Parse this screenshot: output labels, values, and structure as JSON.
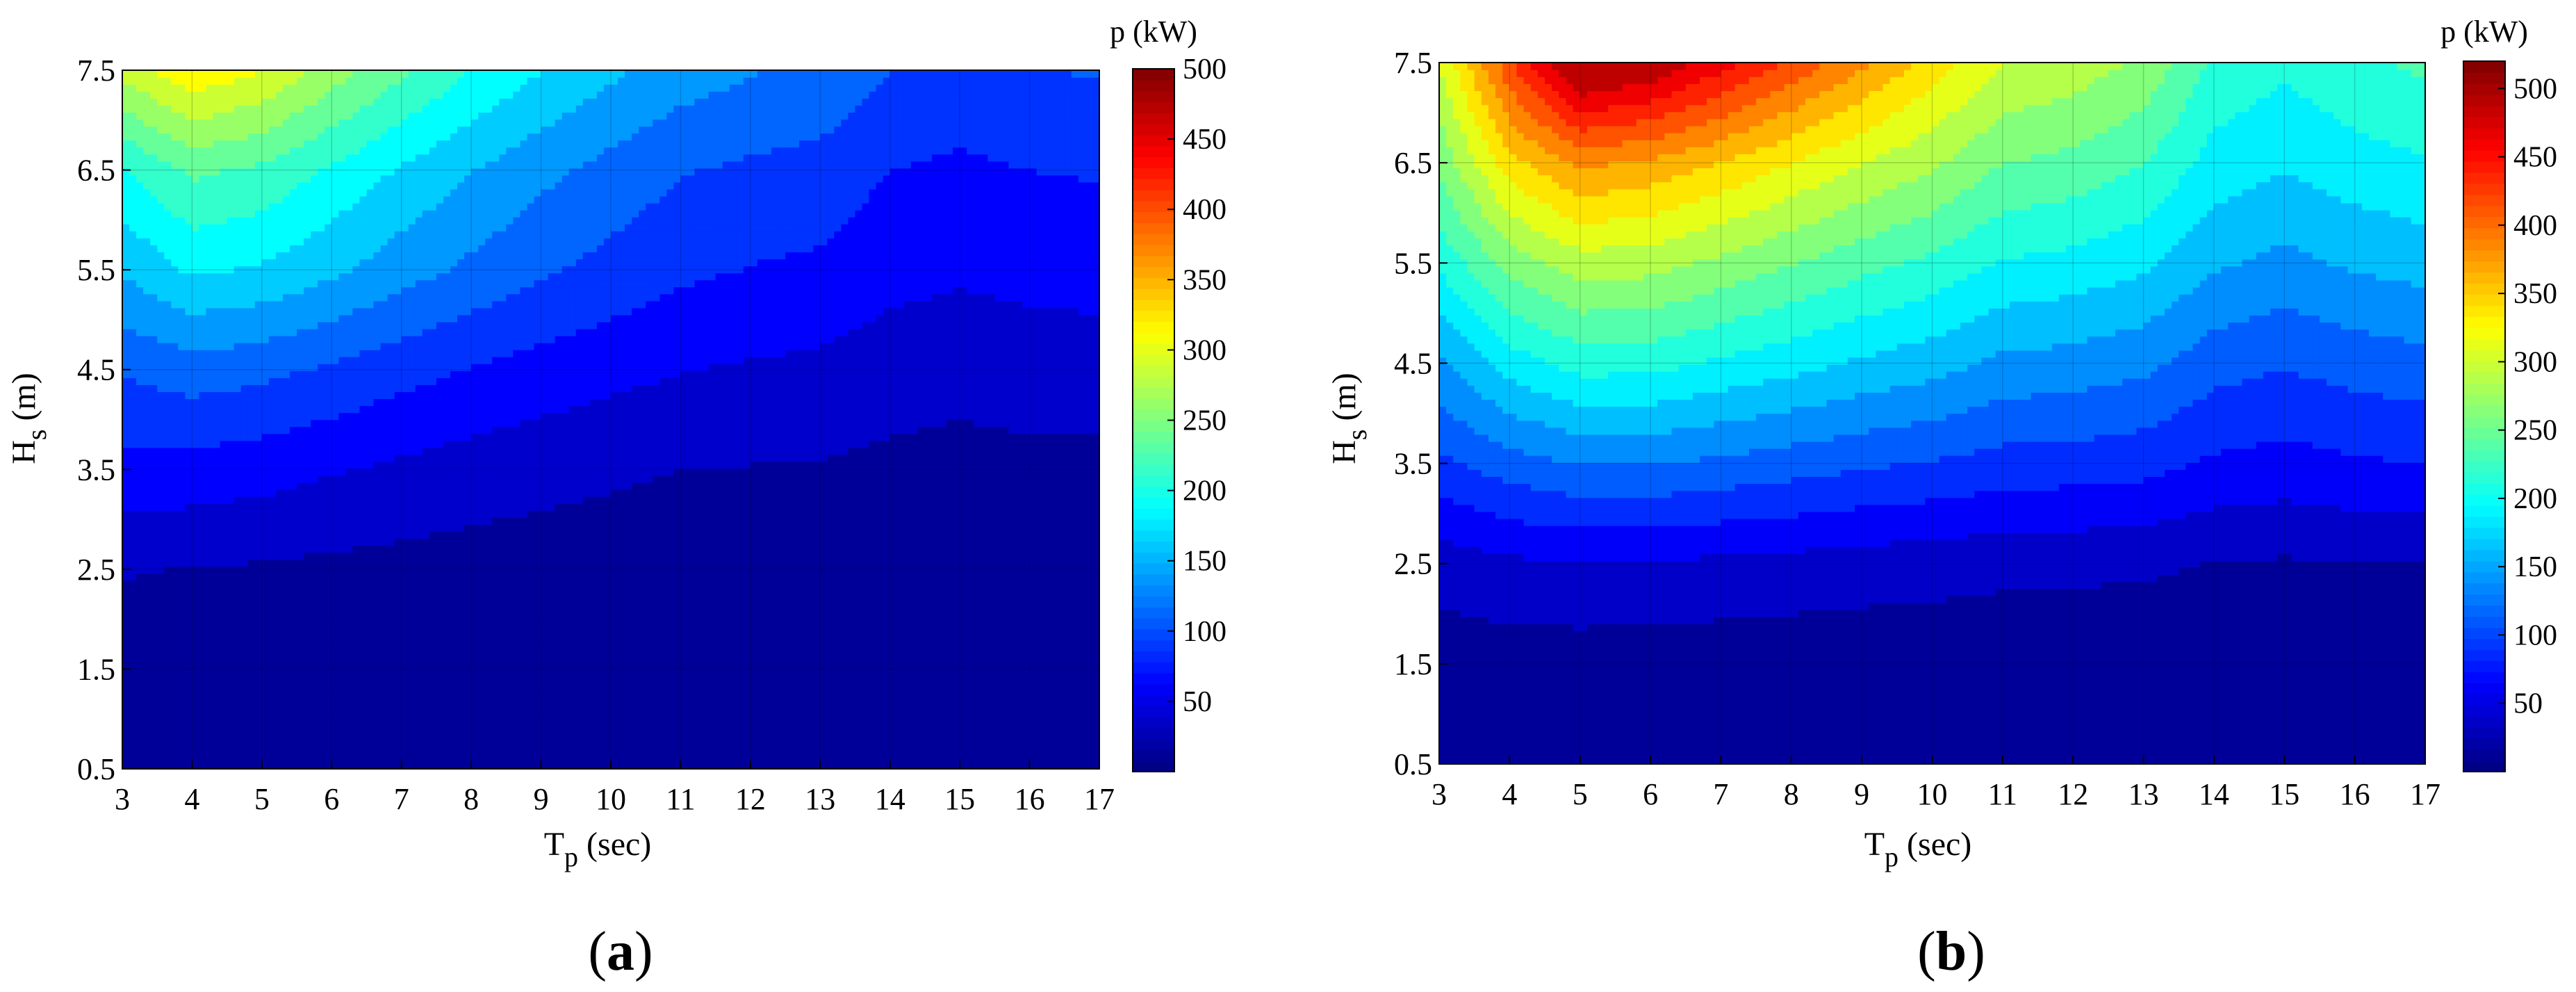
{
  "chart_data": [
    {
      "type": "heatmap",
      "subtype": "filled-contour",
      "panel_label": "a",
      "xlabel": "T",
      "xlabel_sub": "p",
      "xlabel_unit": " (sec)",
      "ylabel": "H",
      "ylabel_sub": "s",
      "ylabel_unit": " (m)",
      "colorbar_title": "p (kW)",
      "colormap": "jet",
      "xlim": [
        3,
        17
      ],
      "ylim": [
        0.5,
        7.5
      ],
      "clim": [
        0,
        500
      ],
      "x": [
        3,
        4,
        5,
        6,
        7,
        8,
        9,
        10,
        11,
        12,
        13,
        14,
        15,
        16,
        17
      ],
      "y": [
        0.5,
        1.5,
        2.5,
        3.5,
        4.5,
        5.5,
        6.5,
        7.5
      ],
      "xticks": [
        "3",
        "4",
        "5",
        "6",
        "7",
        "8",
        "9",
        "10",
        "11",
        "12",
        "13",
        "14",
        "15",
        "16",
        "17"
      ],
      "yticks": [
        "0.5",
        "1.5",
        "2.5",
        "3.5",
        "4.5",
        "5.5",
        "6.5",
        "7.5"
      ],
      "cticks": [
        "50",
        "100",
        "150",
        "200",
        "250",
        "300",
        "350",
        "400",
        "450",
        "500"
      ],
      "z": [
        [
          0.9,
          0.8,
          0.8,
          0.7,
          0.6,
          0.6,
          0.5,
          0.4,
          0.4,
          0.4,
          0.3,
          0.3,
          0.3,
          0.3,
          0.3
        ],
        [
          8,
          7,
          7,
          6,
          5,
          5,
          4,
          4,
          3,
          3,
          3,
          3,
          2,
          2,
          2
        ],
        [
          27,
          24,
          22,
          19,
          17,
          15,
          13,
          12,
          10,
          10,
          9,
          8,
          7,
          8,
          8
        ],
        [
          68,
          65,
          60,
          52,
          45,
          38,
          33,
          29,
          25,
          24,
          23,
          19,
          17,
          19,
          19
        ],
        [
          102,
          113,
          107,
          96,
          84,
          74,
          65,
          57,
          51,
          47,
          44,
          37,
          33,
          36,
          37
        ],
        [
          152,
          179,
          172,
          155,
          136,
          119,
          104,
          92,
          80,
          74,
          70,
          58,
          54,
          58,
          60
        ],
        [
          197,
          230,
          220,
          196,
          172,
          151,
          132,
          116,
          102,
          95,
          91,
          75,
          70,
          75,
          77
        ],
        [
          283,
          320,
          300,
          263,
          230,
          200,
          176,
          155,
          138,
          127,
          120,
          100,
          93,
          99,
          102
        ]
      ]
    },
    {
      "type": "heatmap",
      "subtype": "filled-contour",
      "panel_label": "b",
      "xlabel": "T",
      "xlabel_sub": "p",
      "xlabel_unit": " (sec)",
      "ylabel": "H",
      "ylabel_sub": "s",
      "ylabel_unit": " (m)",
      "colorbar_title": "p (kW)",
      "colormap": "jet",
      "xlim": [
        3,
        17
      ],
      "ylim": [
        0.5,
        7.5
      ],
      "clim": [
        0,
        520
      ],
      "x": [
        3,
        4,
        5,
        6,
        7,
        8,
        9,
        10,
        11,
        12,
        13,
        14,
        15,
        16,
        17
      ],
      "y": [
        0.5,
        1.5,
        2.5,
        3.5,
        4.5,
        5.5,
        6.5,
        7.5
      ],
      "xticks": [
        "3",
        "4",
        "5",
        "6",
        "7",
        "8",
        "9",
        "10",
        "11",
        "12",
        "13",
        "14",
        "15",
        "16",
        "17"
      ],
      "yticks": [
        "0.5",
        "1.5",
        "2.5",
        "3.5",
        "4.5",
        "5.5",
        "6.5",
        "7.5"
      ],
      "cticks": [
        "50",
        "100",
        "150",
        "200",
        "250",
        "300",
        "350",
        "400",
        "450",
        "500"
      ],
      "z": [
        [
          1.1,
          1.0,
          0.9,
          0.8,
          0.7,
          0.6,
          0.6,
          0.5,
          0.4,
          0.4,
          0.4,
          0.3,
          0.3,
          0.3,
          0.3
        ],
        [
          11,
          12,
          12,
          11,
          10,
          9,
          8,
          8,
          7,
          6,
          6,
          5,
          4,
          5,
          5
        ],
        [
          36,
          45,
          48,
          47,
          44,
          41,
          38,
          35,
          32,
          31,
          29,
          24,
          22,
          24,
          25
        ],
        [
          94,
          113,
          126,
          126,
          119,
          112,
          104,
          98,
          90,
          88,
          84,
          71,
          66,
          72,
          75
        ],
        [
          145,
          187,
          210,
          209,
          196,
          184,
          171,
          160,
          144,
          140,
          132,
          110,
          102,
          111,
          116
        ],
        [
          205,
          261,
          288,
          285,
          268,
          251,
          234,
          219,
          198,
          192,
          180,
          154,
          143,
          154,
          160
        ],
        [
          255,
          340,
          380,
          370,
          350,
          325,
          300,
          280,
          250,
          243,
          226,
          190,
          178,
          190,
          198
        ],
        [
          300,
          420,
          520,
          500,
          460,
          420,
          380,
          340,
          300,
          290,
          270,
          220,
          205,
          220,
          230
        ]
      ]
    }
  ]
}
